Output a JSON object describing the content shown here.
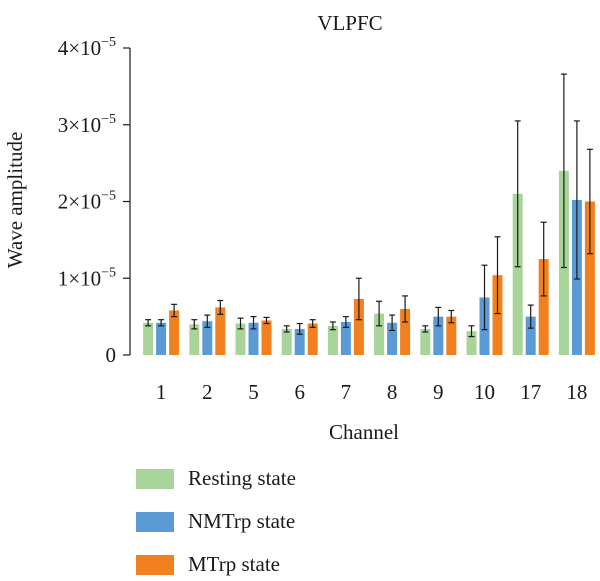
{
  "chart_data": {
    "type": "bar",
    "title": "VLPFC",
    "xlabel": "Channel",
    "ylabel": "Wave amplitude",
    "ylim": [
      0,
      4e-05
    ],
    "yticks": [
      {
        "value": 0,
        "label": "0"
      },
      {
        "value": 1e-05,
        "label": "1×10",
        "exp": "−5"
      },
      {
        "value": 2e-05,
        "label": "2×10",
        "exp": "−5"
      },
      {
        "value": 3e-05,
        "label": "3×10",
        "exp": "−5"
      },
      {
        "value": 4e-05,
        "label": "4×10",
        "exp": "−5"
      }
    ],
    "categories": [
      "1",
      "2",
      "5",
      "6",
      "7",
      "8",
      "9",
      "10",
      "17",
      "18"
    ],
    "series": [
      {
        "name": "Resting state",
        "color": "#a8d49a",
        "values": [
          4.2e-06,
          4e-06,
          4.1e-06,
          3.4e-06,
          3.8e-06,
          5.4e-06,
          3.4e-06,
          3.1e-06,
          2.1e-05,
          2.4e-05
        ],
        "errors": [
          4e-07,
          6e-07,
          7e-07,
          4e-07,
          5e-07,
          1.6e-06,
          4e-07,
          7e-07,
          9.5e-06,
          1.26e-05
        ]
      },
      {
        "name": "NMTrp state",
        "color": "#5b9bd5",
        "values": [
          4.2e-06,
          4.4e-06,
          4.2e-06,
          3.4e-06,
          4.3e-06,
          4.2e-06,
          5e-06,
          7.5e-06,
          5e-06,
          2.02e-05
        ],
        "errors": [
          4e-07,
          8e-07,
          8e-07,
          7e-07,
          7e-07,
          1e-06,
          1.2e-06,
          4.2e-06,
          1.5e-06,
          1.03e-05
        ]
      },
      {
        "name": "MTrp state",
        "color": "#f2801e",
        "values": [
          5.8e-06,
          6.2e-06,
          4.5e-06,
          4.1e-06,
          7.3e-06,
          6e-06,
          5e-06,
          1.04e-05,
          1.25e-05,
          2e-05
        ],
        "errors": [
          8e-07,
          9e-07,
          4e-07,
          5e-07,
          2.7e-06,
          1.7e-06,
          8e-07,
          5e-06,
          4.8e-06,
          6.8e-06
        ]
      }
    ],
    "grid": false,
    "legend_position": "bottom-left"
  }
}
